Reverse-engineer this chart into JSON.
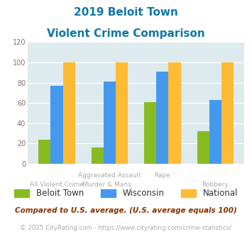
{
  "title_line1": "2019 Beloit Town",
  "title_line2": "Violent Crime Comparison",
  "cat_labels_top": [
    "",
    "Aggravated Assault",
    "Rape",
    ""
  ],
  "cat_labels_bot": [
    "All Violent Crime",
    "Murder & Mans...",
    "",
    "Robbery"
  ],
  "series": {
    "Beloit Town": [
      24,
      16,
      61,
      32
    ],
    "Wisconsin": [
      77,
      81,
      91,
      63
    ],
    "National": [
      100,
      100,
      100,
      100
    ]
  },
  "colors": {
    "Beloit Town": "#88bb22",
    "Wisconsin": "#4499ee",
    "National": "#ffbb33"
  },
  "ylim": [
    0,
    120
  ],
  "yticks": [
    0,
    20,
    40,
    60,
    80,
    100,
    120
  ],
  "plot_bg": "#ddeaee",
  "fig_bg": "#ffffff",
  "title_color": "#1177aa",
  "axis_label_color": "#aaaaaa",
  "legend_label_color": "#333333",
  "footnote1": "Compared to U.S. average. (U.S. average equals 100)",
  "footnote2": "© 2025 CityRating.com - https://www.cityrating.com/crime-statistics/",
  "footnote1_color": "#883300",
  "footnote2_color": "#aaaaaa",
  "bar_width": 0.23
}
